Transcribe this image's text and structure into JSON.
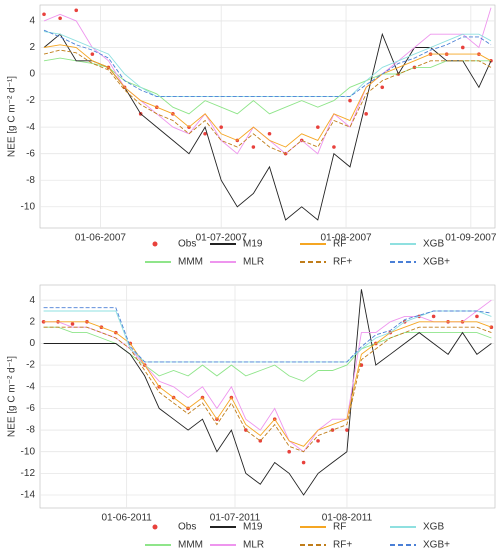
{
  "chart_data": [
    {
      "type": "line",
      "y_label": "NEE [g C m⁻² d⁻¹]",
      "x": [
        "2007-05-18",
        "2007-05-22",
        "2007-05-26",
        "2007-05-30",
        "2007-06-03",
        "2007-06-07",
        "2007-06-11",
        "2007-06-15",
        "2007-06-19",
        "2007-06-23",
        "2007-06-27",
        "2007-07-01",
        "2007-07-05",
        "2007-07-09",
        "2007-07-13",
        "2007-07-17",
        "2007-07-21",
        "2007-07-25",
        "2007-07-29",
        "2007-08-02",
        "2007-08-06",
        "2007-08-10",
        "2007-08-14",
        "2007-08-18",
        "2007-08-22",
        "2007-08-26",
        "2007-08-30",
        "2007-09-03",
        "2007-09-06"
      ],
      "xlim": [
        "2007-05-17",
        "2007-09-07"
      ],
      "xticks": [
        {
          "value": "2007-06-01",
          "label": "01-06-2007"
        },
        {
          "value": "2007-07-01",
          "label": "01-07-2007"
        },
        {
          "value": "2007-08-01",
          "label": "01-08-2007"
        },
        {
          "value": "2007-09-01",
          "label": "01-09-2007"
        }
      ],
      "ylim": [
        -11.6,
        5.2
      ],
      "yticks": [
        -10,
        -8,
        -6,
        -4,
        -2,
        0,
        2,
        4
      ],
      "grid": true,
      "series": [
        {
          "name": "Obs",
          "color": "#e8413c",
          "style": "points",
          "values": [
            4.5,
            4.2,
            4.8,
            1.5,
            0.5,
            -1,
            -3,
            -2.5,
            -3,
            -4,
            -4.5,
            -4,
            -5,
            -5.5,
            -4.5,
            -6,
            -5,
            -4,
            -5.5,
            -2,
            -3,
            -1,
            0,
            0.5,
            1.5,
            1.5,
            2,
            1.5,
            1
          ]
        },
        {
          "name": "MMM",
          "color": "#8fe58a",
          "style": "line",
          "values": [
            1,
            1.2,
            1,
            0.8,
            0.5,
            -0.5,
            -1,
            -1.5,
            -2.5,
            -3,
            -2,
            -2.5,
            -3,
            -2,
            -3,
            -2.5,
            -2,
            -2.5,
            -2,
            -1,
            -0.5,
            0,
            0,
            0.5,
            0.5,
            1,
            1,
            1,
            1
          ]
        },
        {
          "name": "M19",
          "color": "#222222",
          "style": "line",
          "values": [
            2,
            3,
            1,
            1,
            0.5,
            -1,
            -3,
            -4,
            -5,
            -6,
            -4,
            -8,
            -10,
            -9,
            -7,
            -11,
            -10,
            -11,
            -6,
            -7,
            -2,
            3,
            0,
            2,
            2,
            1,
            1,
            -1,
            1
          ]
        },
        {
          "name": "MLR",
          "color": "#ee95ee",
          "style": "line",
          "values": [
            4,
            4.5,
            4,
            2,
            1,
            -1,
            -2,
            -3,
            -4,
            -4.5,
            -3,
            -5,
            -6,
            -4,
            -5,
            -6,
            -5,
            -6,
            -3,
            -4,
            -1,
            0,
            1,
            2,
            3,
            3,
            3,
            2,
            5
          ]
        },
        {
          "name": "RF",
          "color": "#f5a623",
          "style": "line",
          "values": [
            2,
            2.2,
            2,
            1,
            0.5,
            -1,
            -2,
            -2.5,
            -3,
            -4,
            -3,
            -4.5,
            -5,
            -4,
            -5,
            -5.5,
            -4.5,
            -5,
            -3,
            -3.5,
            -1,
            0,
            0.5,
            1,
            1.5,
            1.5,
            1.5,
            1.5,
            1
          ]
        },
        {
          "name": "RF+",
          "color": "#c07d1a",
          "style": "dashed",
          "values": [
            1.5,
            1.8,
            1.6,
            0.8,
            0.3,
            -1.2,
            -2.3,
            -3,
            -3.5,
            -4.5,
            -3.5,
            -5,
            -5.5,
            -4.5,
            -5.5,
            -6,
            -5,
            -5.5,
            -3.5,
            -4,
            -1.5,
            -0.5,
            0,
            0.5,
            1,
            1,
            1,
            1,
            0.5
          ]
        },
        {
          "name": "XGB",
          "color": "#8fe0e0",
          "style": "line",
          "values": [
            3.2,
            3,
            2.5,
            2,
            1.5,
            0,
            -1,
            -1.7,
            -1.7,
            -1.7,
            -1.7,
            -1.7,
            -1.7,
            -1.7,
            -1.7,
            -1.7,
            -1.7,
            -1.7,
            -1.7,
            -1.7,
            -0.5,
            0.5,
            1,
            1.5,
            2,
            2.5,
            3,
            3,
            2.5
          ]
        },
        {
          "name": "XGB+",
          "color": "#4a7fd6",
          "style": "dashed",
          "values": [
            3.3,
            2.8,
            2.2,
            1.8,
            1.2,
            -0.5,
            -1.2,
            -1.7,
            -1.7,
            -1.7,
            -1.7,
            -1.7,
            -1.7,
            -1.7,
            -1.7,
            -1.7,
            -1.7,
            -1.7,
            -1.7,
            -1.7,
            -0.8,
            0,
            0.8,
            1.2,
            1.8,
            2.2,
            2.8,
            2.8,
            2.2
          ]
        }
      ]
    },
    {
      "type": "line",
      "y_label": "NEE [g C m⁻² d⁻¹]",
      "x": [
        "2011-05-09",
        "2011-05-13",
        "2011-05-17",
        "2011-05-21",
        "2011-05-25",
        "2011-05-29",
        "2011-06-02",
        "2011-06-06",
        "2011-06-10",
        "2011-06-14",
        "2011-06-18",
        "2011-06-22",
        "2011-06-26",
        "2011-06-30",
        "2011-07-04",
        "2011-07-08",
        "2011-07-12",
        "2011-07-16",
        "2011-07-20",
        "2011-07-24",
        "2011-07-28",
        "2011-08-01",
        "2011-08-05",
        "2011-08-09",
        "2011-08-13",
        "2011-08-17",
        "2011-08-21",
        "2011-08-25",
        "2011-08-29",
        "2011-09-02",
        "2011-09-06",
        "2011-09-10"
      ],
      "xlim": [
        "2011-05-08",
        "2011-09-11"
      ],
      "xticks": [
        {
          "value": "2011-06-01",
          "label": "01-06-2011"
        },
        {
          "value": "2011-07-01",
          "label": "01-07-2011"
        },
        {
          "value": "2011-08-01",
          "label": "01-08-2011"
        }
      ],
      "ylim": [
        -15.2,
        5.4
      ],
      "yticks": [
        -14,
        -12,
        -10,
        -8,
        -6,
        -4,
        -2,
        0,
        2,
        4
      ],
      "grid": true,
      "series": [
        {
          "name": "Obs",
          "color": "#e8413c",
          "style": "points",
          "values": [
            2,
            2,
            1.8,
            2,
            1.5,
            1,
            0,
            -2,
            -4,
            -5,
            -6,
            -5,
            -7,
            -5,
            -8,
            -9,
            -7,
            -10,
            -11,
            -9,
            -8,
            -8,
            -2,
            0,
            1,
            2,
            2.5,
            2.5,
            2,
            2,
            2.5,
            1.5
          ]
        },
        {
          "name": "MMM",
          "color": "#8fe58a",
          "style": "line",
          "values": [
            1.5,
            1.5,
            1,
            1,
            0.5,
            0,
            -1,
            -2,
            -3,
            -2.5,
            -3,
            -2,
            -3,
            -2,
            -3,
            -2.5,
            -2,
            -3,
            -3.5,
            -2.5,
            -2.5,
            -2,
            -0.5,
            0,
            0.5,
            1,
            1,
            1,
            1,
            1,
            1,
            0.5
          ]
        },
        {
          "name": "M19",
          "color": "#222222",
          "style": "line",
          "values": [
            0,
            0,
            0,
            0,
            0,
            0,
            -1,
            -3,
            -6,
            -7,
            -8,
            -7,
            -10,
            -8,
            -12,
            -13,
            -11,
            -12,
            -14,
            -12,
            -11,
            -10,
            5,
            -2,
            -1,
            0,
            1,
            0,
            -1,
            1,
            -1,
            0
          ]
        },
        {
          "name": "MLR",
          "color": "#ee95ee",
          "style": "line",
          "values": [
            2,
            2,
            1.5,
            1.5,
            1,
            0.5,
            -0.5,
            -2,
            -3.5,
            -4,
            -5,
            -4,
            -6,
            -4,
            -7,
            -8,
            -6,
            -9,
            -10,
            -8,
            -7,
            -7,
            1,
            1,
            2,
            2.5,
            2.5,
            2,
            2,
            2,
            3,
            4
          ]
        },
        {
          "name": "RF",
          "color": "#f5a623",
          "style": "line",
          "values": [
            2,
            2,
            2,
            2,
            1.5,
            1,
            0,
            -2,
            -4,
            -5,
            -6,
            -5,
            -7,
            -5,
            -7.5,
            -8.5,
            -7,
            -9,
            -9.5,
            -8,
            -7.5,
            -7,
            -1,
            0,
            1,
            1.5,
            2,
            2,
            2,
            2,
            2,
            1.5
          ]
        },
        {
          "name": "RF+",
          "color": "#c07d1a",
          "style": "dashed",
          "values": [
            1.5,
            1.5,
            1.5,
            1.5,
            1,
            0.5,
            -0.5,
            -2.5,
            -4.5,
            -5.5,
            -6.5,
            -5.5,
            -7.5,
            -5.5,
            -8,
            -9,
            -7.5,
            -9.5,
            -10,
            -8.5,
            -8,
            -7.5,
            -1.5,
            -0.5,
            0.5,
            1,
            1.5,
            1.5,
            1.5,
            1.5,
            1.5,
            1
          ]
        },
        {
          "name": "XGB",
          "color": "#8fe0e0",
          "style": "line",
          "values": [
            3,
            3,
            3,
            3,
            3,
            3,
            -0.5,
            -1.7,
            -1.7,
            -1.7,
            -1.7,
            -1.7,
            -1.7,
            -1.7,
            -1.7,
            -1.7,
            -1.7,
            -1.7,
            -1.7,
            -1.7,
            -1.7,
            -1.7,
            -0.5,
            0.5,
            1,
            2,
            2.5,
            3,
            3,
            3,
            3,
            2.5
          ]
        },
        {
          "name": "XGB+",
          "color": "#4a7fd6",
          "style": "dashed",
          "values": [
            3.3,
            3.3,
            3.3,
            3.3,
            3.3,
            3.3,
            -0.3,
            -1.7,
            -1.7,
            -1.7,
            -1.7,
            -1.7,
            -1.7,
            -1.7,
            -1.7,
            -1.7,
            -1.7,
            -1.7,
            -1.7,
            -1.7,
            -1.7,
            -1.7,
            -0.3,
            0.8,
            1.2,
            2.2,
            2.6,
            3,
            3,
            3,
            3,
            2.8
          ]
        }
      ]
    }
  ]
}
